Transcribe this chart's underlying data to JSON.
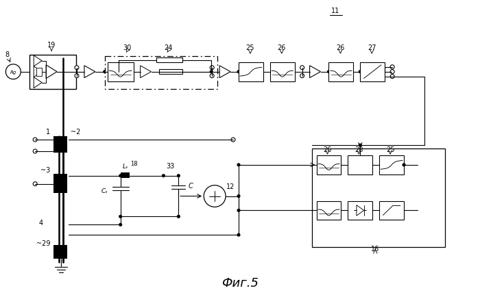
{
  "title": "Фиг.5",
  "bg_color": "#ffffff",
  "fig_width": 7.0,
  "fig_height": 4.35,
  "dpi": 100,
  "chain_y": 105,
  "xlim": [
    0,
    700
  ],
  "ylim": [
    435,
    0
  ]
}
